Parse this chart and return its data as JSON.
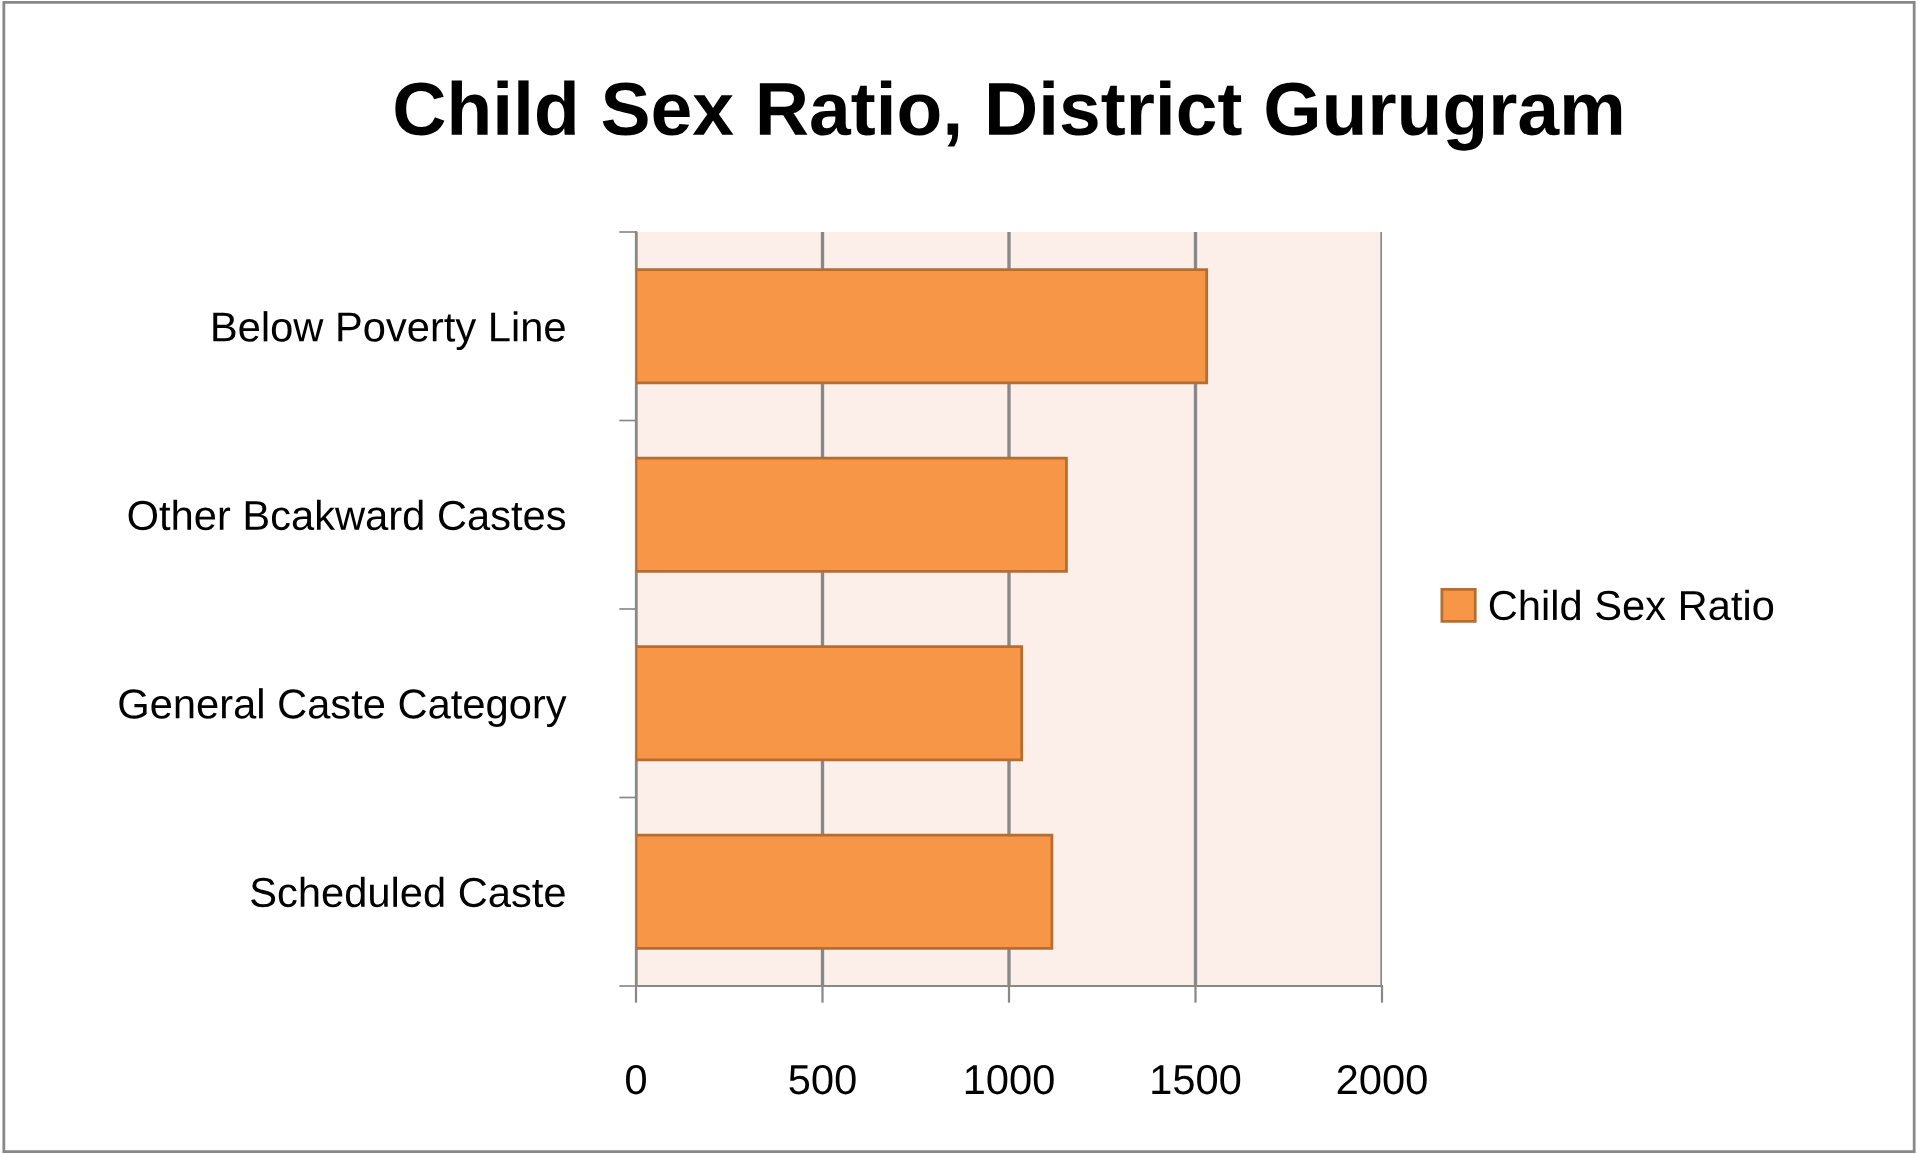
{
  "chart_data": {
    "type": "bar",
    "orientation": "horizontal",
    "title": "Child Sex Ratio, District Gurugram",
    "categories": [
      "Below Poverty Line",
      "Other Bcakward Castes",
      "General Caste Category",
      "Scheduled Caste"
    ],
    "series": [
      {
        "name": "Child Sex Ratio",
        "color": "#f79646",
        "values": [
          1530,
          1154,
          1034,
          1115
        ]
      }
    ],
    "xlim": [
      0,
      2000
    ],
    "xticks": [
      0,
      500,
      1000,
      1500,
      2000
    ],
    "grid": "x",
    "legend": "right"
  }
}
